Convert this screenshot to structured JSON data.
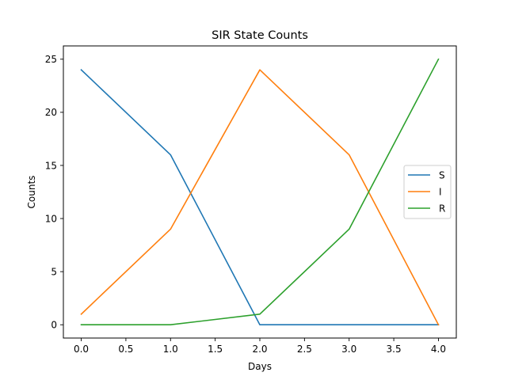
{
  "chart_data": {
    "type": "line",
    "title": "SIR State Counts",
    "xlabel": "Days",
    "ylabel": "Counts",
    "x": [
      0,
      1,
      2,
      3,
      4
    ],
    "xlim": [
      -0.2,
      4.2
    ],
    "ylim": [
      -1.25,
      26.25
    ],
    "xticks": [
      0,
      0.5,
      1,
      1.5,
      2,
      2.5,
      3,
      3.5,
      4
    ],
    "xtick_labels": [
      "0.0",
      "0.5",
      "1.0",
      "1.5",
      "2.0",
      "2.5",
      "3.0",
      "3.5",
      "4.0"
    ],
    "yticks": [
      0,
      5,
      10,
      15,
      20,
      25
    ],
    "ytick_labels": [
      "0",
      "5",
      "10",
      "15",
      "20",
      "25"
    ],
    "grid": false,
    "legend_position": "center-right",
    "series": [
      {
        "name": "S",
        "color": "#1f77b4",
        "values": [
          24,
          16,
          0,
          0,
          0
        ]
      },
      {
        "name": "I",
        "color": "#ff7f0e",
        "values": [
          1,
          9,
          24,
          16,
          0
        ]
      },
      {
        "name": "R",
        "color": "#2ca02c",
        "values": [
          0,
          0,
          1,
          9,
          25
        ]
      }
    ]
  }
}
